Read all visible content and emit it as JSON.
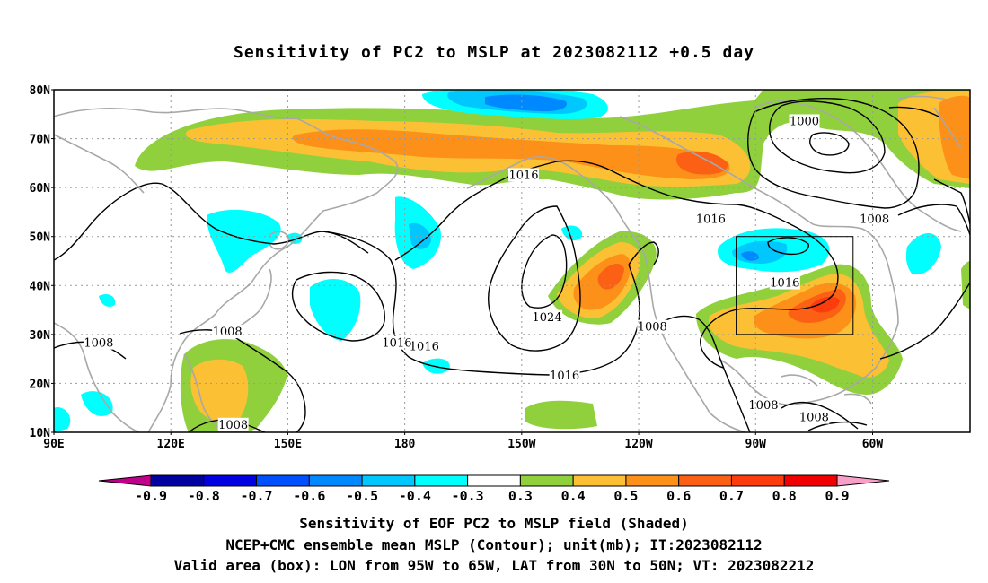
{
  "title": "Sensitivity of PC2 to MSLP at 2023082112 +0.5 day",
  "map": {
    "lat_labels": [
      "80N",
      "70N",
      "60N",
      "50N",
      "40N",
      "30N",
      "20N",
      "10N"
    ],
    "lon_labels": [
      "90E",
      "120E",
      "150E",
      "180",
      "150W",
      "120W",
      "90W",
      "60W"
    ],
    "lat_range": [
      10,
      80
    ],
    "lon_range_deg_east": [
      90,
      325
    ],
    "contour_unit": "mb",
    "contour_labels": [
      {
        "text": "1016",
        "lon": -149.5,
        "lat": 62.5
      },
      {
        "text": "1016",
        "lon": -101.5,
        "lat": 53.5
      },
      {
        "text": "1000",
        "lon": -77.5,
        "lat": 73.5
      },
      {
        "text": "1008",
        "lon": -59.5,
        "lat": 53.5
      },
      {
        "text": "1024",
        "lon": -143.5,
        "lat": 33.5
      },
      {
        "text": "1008",
        "lon": -116.5,
        "lat": 31.5
      },
      {
        "text": "1016",
        "lon": -82.5,
        "lat": 40.5
      },
      {
        "text": "1016",
        "lon": -139,
        "lat": 21.5
      },
      {
        "text": "1016",
        "lon": -175,
        "lat": 27.5
      },
      {
        "text": "1016",
        "lon": 178,
        "lat": 28.2
      },
      {
        "text": "1008",
        "lon": 134.5,
        "lat": 30.5
      },
      {
        "text": "1008",
        "lon": 101.5,
        "lat": 28.2
      },
      {
        "text": "1008",
        "lon": 136,
        "lat": 11.5
      },
      {
        "text": "1008",
        "lon": -88,
        "lat": 15.5
      },
      {
        "text": "1008",
        "lon": -75,
        "lat": 13.0
      }
    ],
    "valid_box": {
      "lon_west": -95,
      "lon_east": -65,
      "lat_south": 30,
      "lat_north": 50
    }
  },
  "colorbar": {
    "labels": [
      "-0.9",
      "-0.8",
      "-0.7",
      "-0.6",
      "-0.5",
      "-0.4",
      "-0.3",
      "0.3",
      "0.4",
      "0.5",
      "0.6",
      "0.7",
      "0.8",
      "0.9"
    ],
    "colors": [
      "#0000a0",
      "#0000e0",
      "#0050ff",
      "#0088ff",
      "#00c8ff",
      "#00ffff",
      "#ffffff",
      "#90d03c",
      "#fcc034",
      "#fc9018",
      "#fc6014",
      "#fc3c0c",
      "#f00000"
    ],
    "low_end_color": "#c0008c",
    "high_end_color": "#f8a0c8"
  },
  "caption": {
    "line1": "Sensitivity of EOF PC2 to MSLP field (Shaded)",
    "line2": "NCEP+CMC ensemble mean MSLP (Contour); unit(mb); IT:2023082112",
    "line3": "Valid area (box): LON from 95W to 65W, LAT from 30N to 50N; VT: 2023082212"
  }
}
